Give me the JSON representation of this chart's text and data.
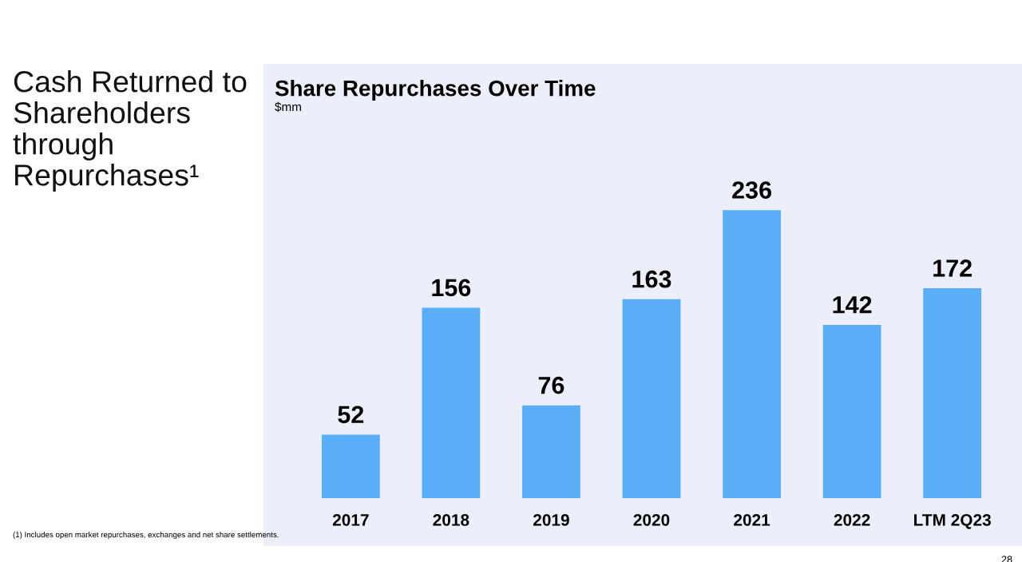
{
  "chart_data": {
    "type": "bar",
    "title": "Cash Returned to Shareholders through Repurchases¹",
    "subtitle": "Share Repurchases Over Time",
    "annotations": [
      "$mm",
      "(1) Includes open market repurchases, exchanges and net share settlements.",
      "28"
    ],
    "categories": [
      "2017",
      "2018",
      "2019",
      "2020",
      "2021",
      "2022",
      "LTM 2Q23"
    ],
    "values": [
      52,
      156,
      76,
      163,
      236,
      142,
      172
    ],
    "color": "#5aaef7",
    "data_labels": true,
    "grid": false,
    "legend": false
  }
}
